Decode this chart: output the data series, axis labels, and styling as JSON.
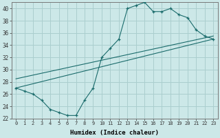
{
  "xlabel": "Humidex (Indice chaleur)",
  "ylabel": "",
  "bg_color": "#cce8e8",
  "grid_color": "#aacece",
  "line_color": "#1a6b6b",
  "xlim": [
    -0.5,
    23.5
  ],
  "ylim": [
    22,
    41
  ],
  "xticks": [
    0,
    1,
    2,
    3,
    4,
    5,
    6,
    7,
    8,
    9,
    10,
    11,
    12,
    13,
    14,
    15,
    16,
    17,
    18,
    19,
    20,
    21,
    22,
    23
  ],
  "yticks": [
    22,
    24,
    26,
    28,
    30,
    32,
    34,
    36,
    38,
    40
  ],
  "curve_x": [
    0,
    1,
    2,
    3,
    4,
    5,
    6,
    7,
    8,
    9,
    10,
    11,
    12,
    13,
    14,
    15,
    16,
    17,
    18,
    19,
    20,
    21,
    22,
    23
  ],
  "curve_y": [
    27,
    26.5,
    26,
    25,
    23.5,
    23,
    22.5,
    22.5,
    25,
    27,
    32,
    33.5,
    35,
    40,
    40.5,
    41,
    39.5,
    39.5,
    40,
    39,
    38.5,
    36.5,
    35.5,
    35
  ],
  "line1_x": [
    0,
    23
  ],
  "line1_y": [
    27,
    35
  ],
  "line2_x": [
    0,
    23
  ],
  "line2_y": [
    28.5,
    35.5
  ]
}
